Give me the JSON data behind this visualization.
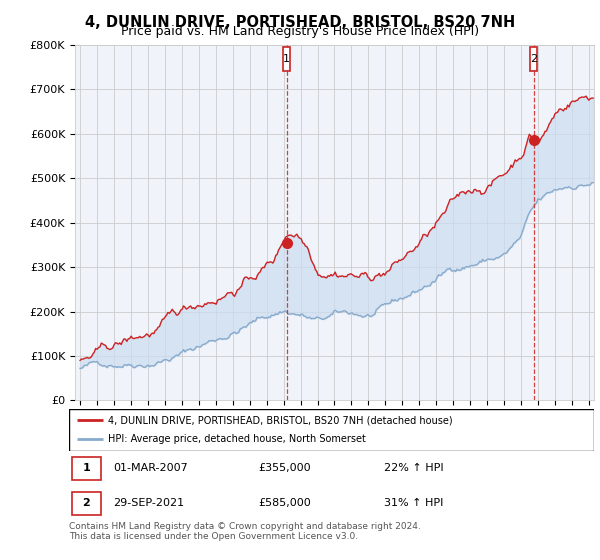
{
  "title": "4, DUNLIN DRIVE, PORTISHEAD, BRISTOL, BS20 7NH",
  "subtitle": "Price paid vs. HM Land Registry's House Price Index (HPI)",
  "title_fontsize": 10.5,
  "subtitle_fontsize": 9,
  "ylim": [
    0,
    800000
  ],
  "yticks": [
    0,
    100000,
    200000,
    300000,
    400000,
    500000,
    600000,
    700000,
    800000
  ],
  "ytick_labels": [
    "£0",
    "£100K",
    "£200K",
    "£300K",
    "£400K",
    "£500K",
    "£600K",
    "£700K",
    "£800K"
  ],
  "background_color": "#ffffff",
  "plot_bg_color": "#f0f4fa",
  "grid_color": "#cccccc",
  "red_color": "#cc2222",
  "blue_color": "#88aacc",
  "fill_color": "#ccddf0",
  "legend_label1": "4, DUNLIN DRIVE, PORTISHEAD, BRISTOL, BS20 7NH (detached house)",
  "legend_label2": "HPI: Average price, detached house, North Somerset",
  "table_row1_num": "1",
  "table_row1_date": "01-MAR-2007",
  "table_row1_price": "£355,000",
  "table_row1_hpi": "22% ↑ HPI",
  "table_row2_num": "2",
  "table_row2_date": "29-SEP-2021",
  "table_row2_price": "£585,000",
  "table_row2_hpi": "31% ↑ HPI",
  "footer": "Contains HM Land Registry data © Crown copyright and database right 2024.\nThis data is licensed under the Open Government Licence v3.0.",
  "m1_x": 2007.17,
  "m2_x": 2021.75,
  "m1_y": 355000,
  "m2_y": 585000,
  "xmin": 1995.0,
  "xmax": 2025.3
}
